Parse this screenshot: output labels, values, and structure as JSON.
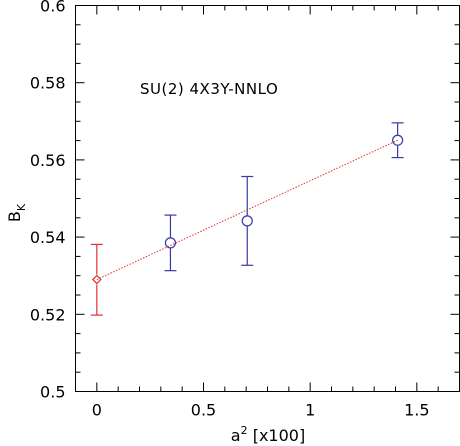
{
  "chart_data": {
    "type": "scatter",
    "title": "",
    "annotation": "SU(2) 4X3Y-NNLO",
    "xlabel": "a",
    "xlabel_sup": "2",
    "xlabel_suffix": " [x100]",
    "ylabel": "B",
    "ylabel_sub": "K",
    "xlim": [
      -0.1,
      1.7
    ],
    "ylim": [
      0.5,
      0.6
    ],
    "x_ticks_major": [
      0,
      0.5,
      1,
      1.5
    ],
    "x_tick_labels": [
      "0",
      "0.5",
      "1",
      "1.5"
    ],
    "x_ticks_minor": [
      -0.1,
      0.1,
      0.2,
      0.3,
      0.4,
      0.6,
      0.7,
      0.8,
      0.9,
      1.1,
      1.2,
      1.3,
      1.4,
      1.6,
      1.7
    ],
    "y_ticks_major": [
      0.5,
      0.52,
      0.54,
      0.56,
      0.58,
      0.6
    ],
    "y_tick_labels": [
      "0.5",
      "0.52",
      "0.54",
      "0.56",
      "0.58",
      "0.6"
    ],
    "y_ticks_minor": [
      0.505,
      0.51,
      0.515,
      0.525,
      0.53,
      0.535,
      0.545,
      0.55,
      0.555,
      0.565,
      0.57,
      0.575,
      0.585,
      0.59,
      0.595
    ],
    "grid": false,
    "series": [
      {
        "marker": "circle",
        "color": "#3a3aa0",
        "points": [
          {
            "x": 0.345,
            "y": 0.5385,
            "err_low": 0.5313,
            "err_high": 0.5457
          },
          {
            "x": 0.705,
            "y": 0.5442,
            "err_low": 0.5327,
            "err_high": 0.5557
          },
          {
            "x": 1.41,
            "y": 0.5651,
            "err_low": 0.5606,
            "err_high": 0.5696
          }
        ]
      },
      {
        "marker": "diamond",
        "color": "#e03030",
        "points": [
          {
            "x": 0.0,
            "y": 0.529,
            "err_low": 0.5198,
            "err_high": 0.5381
          }
        ]
      }
    ],
    "fit_line": {
      "color": "#e03030",
      "style": "dotted",
      "x": [
        0.0,
        1.41
      ],
      "y": [
        0.529,
        0.5651
      ]
    }
  }
}
